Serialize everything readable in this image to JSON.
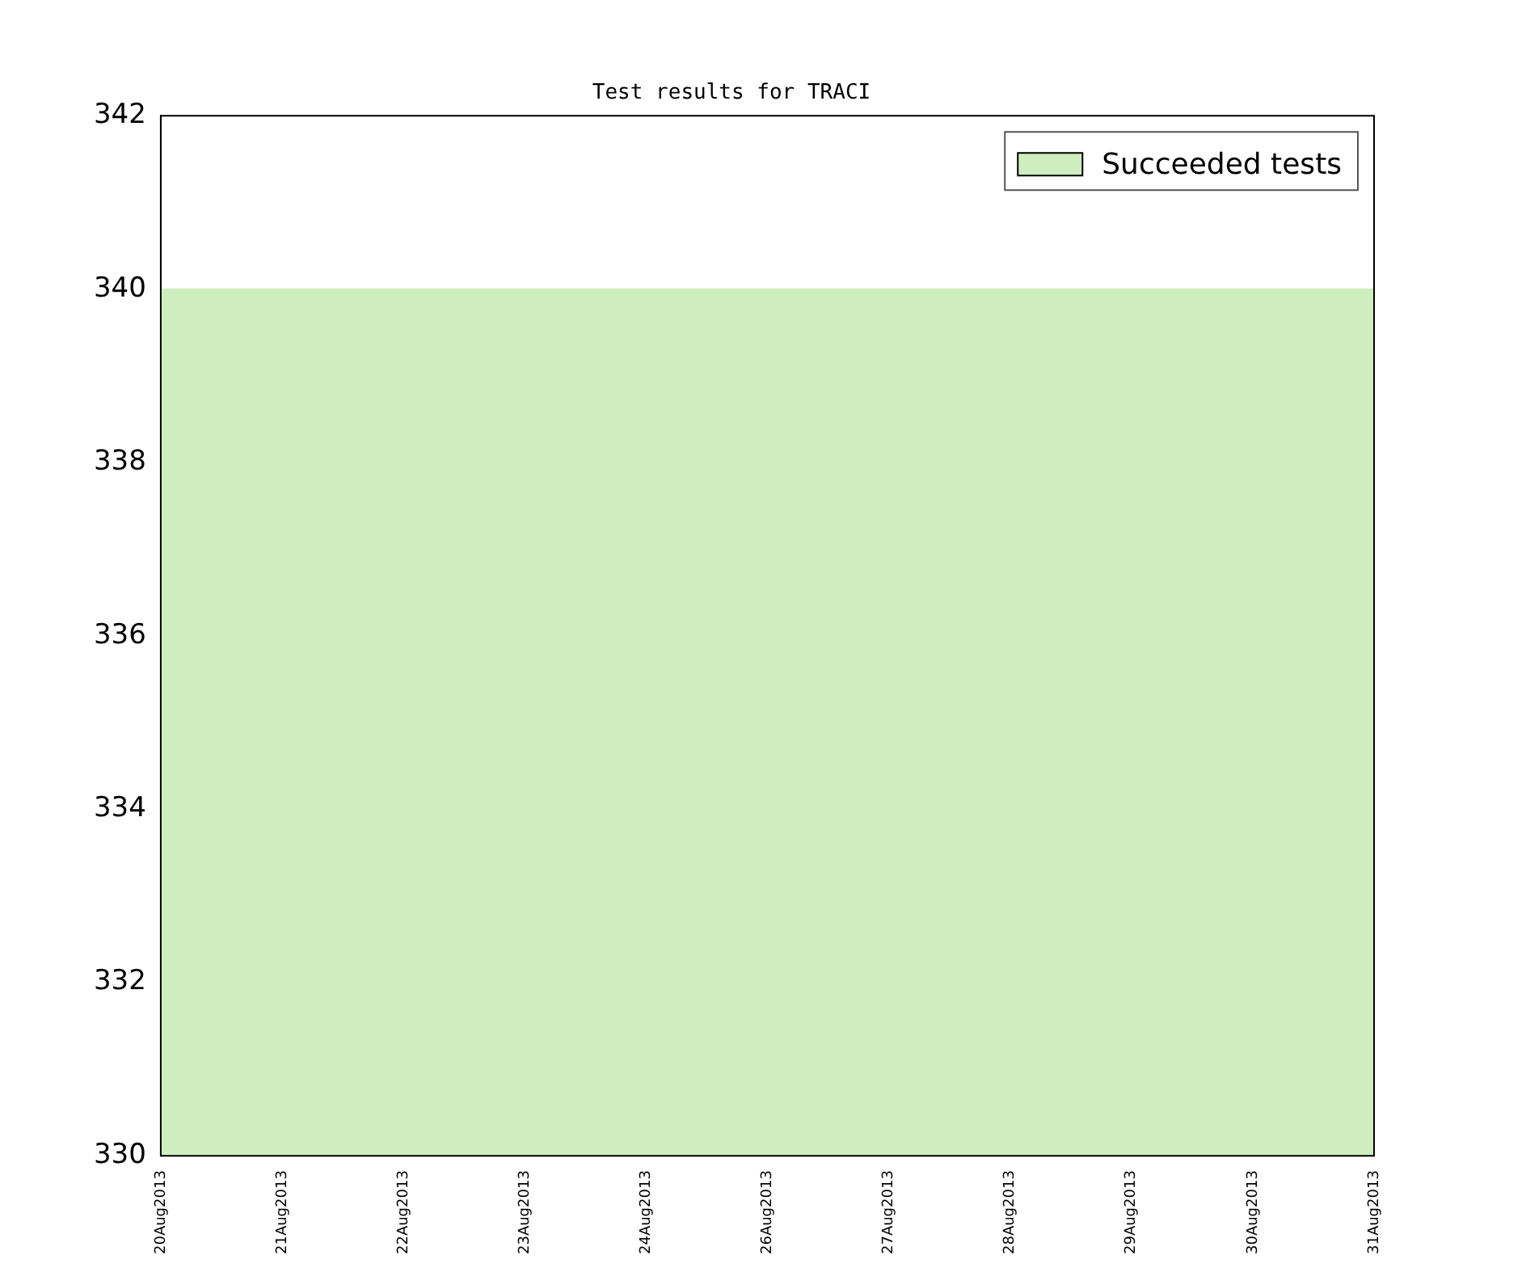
{
  "chart_data": {
    "type": "area",
    "title": "Test results for TRACI",
    "categories": [
      "20Aug2013",
      "21Aug2013",
      "22Aug2013",
      "23Aug2013",
      "24Aug2013",
      "26Aug2013",
      "27Aug2013",
      "28Aug2013",
      "29Aug2013",
      "30Aug2013",
      "31Aug2013"
    ],
    "series": [
      {
        "name": "Succeeded tests",
        "color": "#cfeebf",
        "values": [
          340,
          340,
          340,
          340,
          340,
          340,
          340,
          340,
          340,
          340,
          340
        ]
      }
    ],
    "ylim": [
      330,
      342
    ],
    "yticks": [
      330,
      332,
      334,
      336,
      338,
      340,
      342
    ],
    "legend": "top right"
  }
}
